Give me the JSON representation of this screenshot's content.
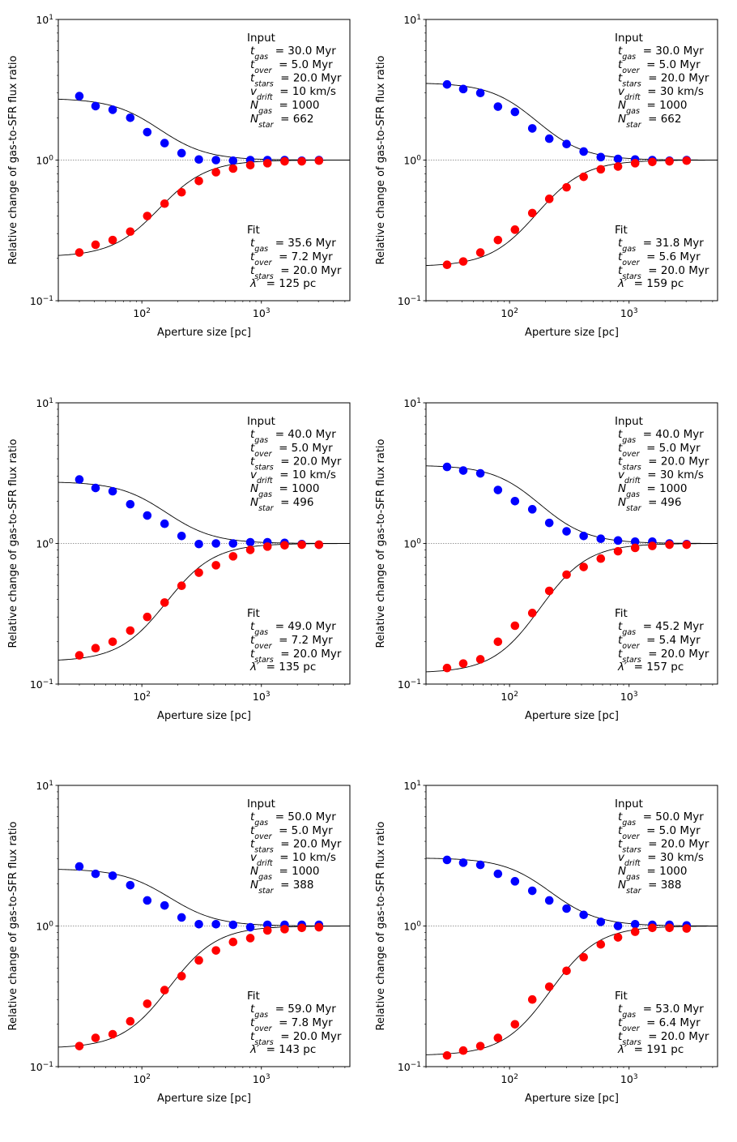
{
  "chart_data": [
    {
      "type": "scatter",
      "xlabel": "Aperture size [pc]",
      "ylabel": "Relative change of gas-to-SFR flux ratio",
      "xscale": "log",
      "yscale": "log",
      "xlim": [
        20,
        5500
      ],
      "ylim": [
        0.1,
        10
      ],
      "xticklabels": [
        "10^2",
        "10^3"
      ],
      "yticklabels": [
        "10^-1",
        "10^0",
        "10^1"
      ],
      "reference_line": 1.0,
      "input": {
        "heading": "Input",
        "t_gas": "30.0 Myr",
        "t_over": "5.0 Myr",
        "t_stars": "20.0 Myr",
        "v_drift": "10 km/s",
        "N_gas": "1000",
        "N_star": "662"
      },
      "fit": {
        "heading": "Fit",
        "t_gas": "35.6 Myr",
        "t_over": "7.2 Myr",
        "t_stars": "20.0 Myr",
        "lambda": "125 pc"
      },
      "x": [
        30,
        41,
        57,
        80,
        111,
        155,
        215,
        300,
        417,
        580,
        808,
        1124,
        1565,
        2178,
        3032
      ],
      "series": [
        {
          "name": "gas (blue)",
          "color": "#0000ff",
          "values": [
            2.85,
            2.42,
            2.28,
            2.0,
            1.58,
            1.32,
            1.12,
            1.01,
            1.0,
            0.99,
            1.0,
            1.0,
            1.0,
            0.99,
            1.0
          ]
        },
        {
          "name": "stars (red)",
          "color": "#ff0000",
          "values": [
            0.22,
            0.25,
            0.27,
            0.31,
            0.4,
            0.49,
            0.59,
            0.71,
            0.82,
            0.87,
            0.92,
            0.95,
            0.98,
            0.98,
            0.99
          ]
        }
      ],
      "fit_curves": {
        "gas": {
          "start": 2.75,
          "end": 1.0
        },
        "stars": {
          "start": 0.205,
          "end": 1.0
        },
        "center_pc": 140
      }
    },
    {
      "type": "scatter",
      "xlabel": "Aperture size [pc]",
      "ylabel": "Relative change of gas-to-SFR flux ratio",
      "xscale": "log",
      "yscale": "log",
      "xlim": [
        20,
        5500
      ],
      "ylim": [
        0.1,
        10
      ],
      "xticklabels": [
        "10^2",
        "10^3"
      ],
      "yticklabels": [
        "10^-1",
        "10^0",
        "10^1"
      ],
      "reference_line": 1.0,
      "input": {
        "heading": "Input",
        "t_gas": "30.0 Myr",
        "t_over": "5.0 Myr",
        "t_stars": "20.0 Myr",
        "v_drift": "30 km/s",
        "N_gas": "1000",
        "N_star": "662"
      },
      "fit": {
        "heading": "Fit",
        "t_gas": "31.8 Myr",
        "t_over": "5.6 Myr",
        "t_stars": "20.0 Myr",
        "lambda": "159 pc"
      },
      "x": [
        30,
        41,
        57,
        80,
        111,
        155,
        215,
        300,
        417,
        580,
        808,
        1124,
        1565,
        2178,
        3032
      ],
      "series": [
        {
          "name": "gas (blue)",
          "color": "#0000ff",
          "values": [
            3.45,
            3.2,
            3.0,
            2.4,
            2.2,
            1.68,
            1.42,
            1.3,
            1.15,
            1.05,
            1.02,
            1.01,
            1.0,
            0.99,
            1.0
          ]
        },
        {
          "name": "stars (red)",
          "color": "#ff0000",
          "values": [
            0.18,
            0.19,
            0.22,
            0.27,
            0.32,
            0.42,
            0.53,
            0.64,
            0.76,
            0.86,
            0.9,
            0.95,
            0.97,
            0.98,
            0.99
          ]
        }
      ],
      "fit_curves": {
        "gas": {
          "start": 3.55,
          "end": 1.0
        },
        "stars": {
          "start": 0.175,
          "end": 1.0
        },
        "center_pc": 170
      }
    },
    {
      "type": "scatter",
      "xlabel": "Aperture size [pc]",
      "ylabel": "Relative change of gas-to-SFR flux ratio",
      "xscale": "log",
      "yscale": "log",
      "xlim": [
        20,
        5500
      ],
      "ylim": [
        0.1,
        10
      ],
      "xticklabels": [
        "10^2",
        "10^3"
      ],
      "yticklabels": [
        "10^-1",
        "10^0",
        "10^1"
      ],
      "reference_line": 1.0,
      "input": {
        "heading": "Input",
        "t_gas": "40.0 Myr",
        "t_over": "5.0 Myr",
        "t_stars": "20.0 Myr",
        "v_drift": "10 km/s",
        "N_gas": "1000",
        "N_star": "496"
      },
      "fit": {
        "heading": "Fit",
        "t_gas": "49.0 Myr",
        "t_over": "7.2 Myr",
        "t_stars": "20.0 Myr",
        "lambda": "135 pc"
      },
      "x": [
        30,
        41,
        57,
        80,
        111,
        155,
        215,
        300,
        417,
        580,
        808,
        1124,
        1565,
        2178,
        3032
      ],
      "series": [
        {
          "name": "gas (blue)",
          "color": "#0000ff",
          "values": [
            2.85,
            2.48,
            2.35,
            1.9,
            1.58,
            1.38,
            1.13,
            0.99,
            1.0,
            1.0,
            1.02,
            1.02,
            1.01,
            0.99,
            0.98
          ]
        },
        {
          "name": "stars (red)",
          "color": "#ff0000",
          "values": [
            0.16,
            0.18,
            0.2,
            0.24,
            0.3,
            0.38,
            0.5,
            0.62,
            0.7,
            0.81,
            0.9,
            0.95,
            0.97,
            0.98,
            0.98
          ]
        }
      ],
      "fit_curves": {
        "gas": {
          "start": 2.75,
          "end": 1.0
        },
        "stars": {
          "start": 0.145,
          "end": 1.0
        },
        "center_pc": 160
      }
    },
    {
      "type": "scatter",
      "xlabel": "Aperture size [pc]",
      "ylabel": "Relative change of gas-to-SFR flux ratio",
      "xscale": "log",
      "yscale": "log",
      "xlim": [
        20,
        5500
      ],
      "ylim": [
        0.1,
        10
      ],
      "xticklabels": [
        "10^2",
        "10^3"
      ],
      "yticklabels": [
        "10^-1",
        "10^0",
        "10^1"
      ],
      "reference_line": 1.0,
      "input": {
        "heading": "Input",
        "t_gas": "40.0 Myr",
        "t_over": "5.0 Myr",
        "t_stars": "20.0 Myr",
        "v_drift": "30 km/s",
        "N_gas": "1000",
        "N_star": "496"
      },
      "fit": {
        "heading": "Fit",
        "t_gas": "45.2 Myr",
        "t_over": "5.4 Myr",
        "t_stars": "20.0 Myr",
        "lambda": "157 pc"
      },
      "x": [
        30,
        41,
        57,
        80,
        111,
        155,
        215,
        300,
        417,
        580,
        808,
        1124,
        1565,
        2178,
        3032
      ],
      "series": [
        {
          "name": "gas (blue)",
          "color": "#0000ff",
          "values": [
            3.5,
            3.3,
            3.15,
            2.4,
            2.0,
            1.75,
            1.4,
            1.22,
            1.13,
            1.08,
            1.05,
            1.03,
            1.03,
            1.0,
            0.99
          ]
        },
        {
          "name": "stars (red)",
          "color": "#ff0000",
          "values": [
            0.13,
            0.14,
            0.15,
            0.2,
            0.26,
            0.32,
            0.46,
            0.6,
            0.68,
            0.78,
            0.88,
            0.93,
            0.96,
            0.98,
            0.98
          ]
        }
      ],
      "fit_curves": {
        "gas": {
          "start": 3.6,
          "end": 1.0
        },
        "stars": {
          "start": 0.12,
          "end": 1.0
        },
        "center_pc": 180
      }
    },
    {
      "type": "scatter",
      "xlabel": "Aperture size [pc]",
      "ylabel": "Relative change of gas-to-SFR flux ratio",
      "xscale": "log",
      "yscale": "log",
      "xlim": [
        20,
        5500
      ],
      "ylim": [
        0.1,
        10
      ],
      "xticklabels": [
        "10^2",
        "10^3"
      ],
      "yticklabels": [
        "10^-1",
        "10^0",
        "10^1"
      ],
      "reference_line": 1.0,
      "input": {
        "heading": "Input",
        "t_gas": "50.0 Myr",
        "t_over": "5.0 Myr",
        "t_stars": "20.0 Myr",
        "v_drift": "10 km/s",
        "N_gas": "1000",
        "N_star": "388"
      },
      "fit": {
        "heading": "Fit",
        "t_gas": "59.0 Myr",
        "t_over": "7.8 Myr",
        "t_stars": "20.0 Myr",
        "lambda": "143 pc"
      },
      "x": [
        30,
        41,
        57,
        80,
        111,
        155,
        215,
        300,
        417,
        580,
        808,
        1124,
        1565,
        2178,
        3032
      ],
      "series": [
        {
          "name": "gas (blue)",
          "color": "#0000ff",
          "values": [
            2.65,
            2.35,
            2.28,
            1.95,
            1.52,
            1.4,
            1.15,
            1.03,
            1.03,
            1.02,
            0.98,
            1.02,
            1.02,
            1.02,
            1.02
          ]
        },
        {
          "name": "stars (red)",
          "color": "#ff0000",
          "values": [
            0.14,
            0.16,
            0.17,
            0.21,
            0.28,
            0.35,
            0.44,
            0.57,
            0.67,
            0.77,
            0.82,
            0.93,
            0.95,
            0.97,
            0.98
          ]
        }
      ],
      "fit_curves": {
        "gas": {
          "start": 2.55,
          "end": 1.0
        },
        "stars": {
          "start": 0.135,
          "end": 1.0
        },
        "center_pc": 170
      }
    },
    {
      "type": "scatter",
      "xlabel": "Aperture size [pc]",
      "ylabel": "Relative change of gas-to-SFR flux ratio",
      "xscale": "log",
      "yscale": "log",
      "xlim": [
        20,
        5500
      ],
      "ylim": [
        0.1,
        10
      ],
      "xticklabels": [
        "10^2",
        "10^3"
      ],
      "yticklabels": [
        "10^-1",
        "10^0",
        "10^1"
      ],
      "reference_line": 1.0,
      "input": {
        "heading": "Input",
        "t_gas": "50.0 Myr",
        "t_over": "5.0 Myr",
        "t_stars": "20.0 Myr",
        "v_drift": "30 km/s",
        "N_gas": "1000",
        "N_star": "388"
      },
      "fit": {
        "heading": "Fit",
        "t_gas": "53.0 Myr",
        "t_over": "6.4 Myr",
        "t_stars": "20.0 Myr",
        "lambda": "191 pc"
      },
      "x": [
        30,
        41,
        57,
        80,
        111,
        155,
        215,
        300,
        417,
        580,
        808,
        1124,
        1565,
        2178,
        3032
      ],
      "series": [
        {
          "name": "gas (blue)",
          "color": "#0000ff",
          "values": [
            2.95,
            2.82,
            2.72,
            2.35,
            2.08,
            1.78,
            1.52,
            1.33,
            1.2,
            1.07,
            1.0,
            1.03,
            1.02,
            1.02,
            1.01
          ]
        },
        {
          "name": "stars (red)",
          "color": "#ff0000",
          "values": [
            0.12,
            0.13,
            0.14,
            0.16,
            0.2,
            0.3,
            0.37,
            0.48,
            0.6,
            0.74,
            0.83,
            0.91,
            0.97,
            0.97,
            0.96
          ]
        }
      ],
      "fit_curves": {
        "gas": {
          "start": 3.05,
          "end": 1.0
        },
        "stars": {
          "start": 0.12,
          "end": 1.0
        },
        "center_pc": 220
      }
    }
  ]
}
